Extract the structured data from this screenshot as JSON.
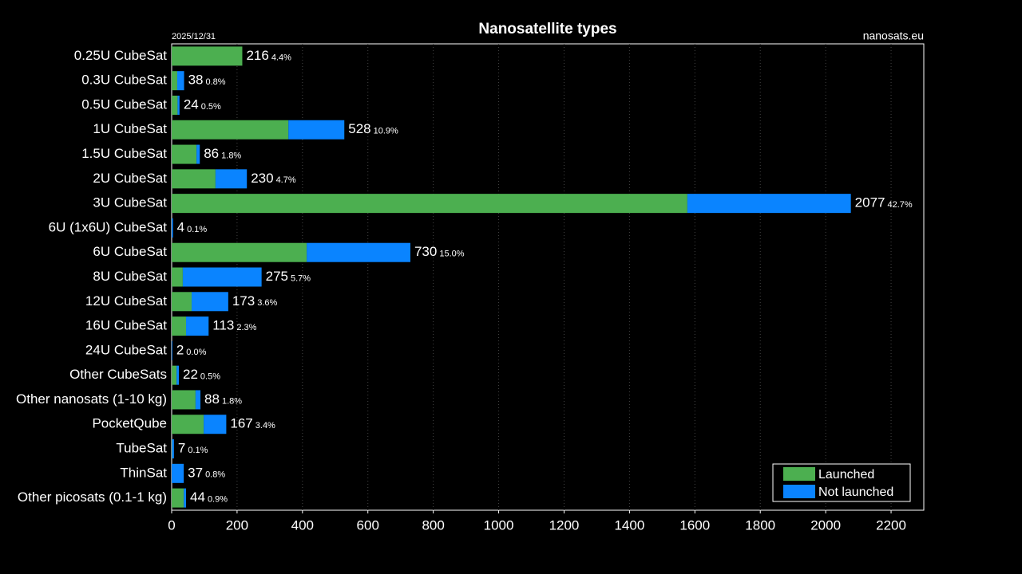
{
  "chart_data": {
    "type": "stacked-barh",
    "title": "Nanosatellite types",
    "date": "2025/12/31",
    "source": "nanosats.eu",
    "categories": [
      "0.25U CubeSat",
      "0.3U CubeSat",
      "0.5U CubeSat",
      "1U CubeSat",
      "1.5U CubeSat",
      "2U CubeSat",
      "3U CubeSat",
      "6U (1x6U) CubeSat",
      "6U CubeSat",
      "8U CubeSat",
      "12U CubeSat",
      "16U CubeSat",
      "24U CubeSat",
      "Other CubeSats",
      "Other nanosats (1-10 kg)",
      "PocketQube",
      "TubeSat",
      "ThinSat",
      "Other picosats (0.1-1 kg)"
    ],
    "series": [
      {
        "name": "Launched",
        "color": "#4caf50",
        "values": [
          216,
          17,
          18,
          357,
          76,
          134,
          1577,
          0,
          413,
          34,
          61,
          44,
          0,
          15,
          73,
          98,
          1,
          0,
          37
        ]
      },
      {
        "name": "Not launched",
        "color": "#0a84ff",
        "values": [
          0,
          21,
          6,
          171,
          10,
          96,
          500,
          4,
          317,
          241,
          112,
          69,
          2,
          7,
          15,
          69,
          6,
          37,
          7
        ]
      }
    ],
    "totals": [
      216,
      38,
      24,
      528,
      86,
      230,
      2077,
      4,
      730,
      275,
      173,
      113,
      2,
      22,
      88,
      167,
      7,
      37,
      44
    ],
    "shares": [
      4.4,
      0.8,
      0.5,
      10.9,
      1.8,
      4.7,
      42.7,
      0.1,
      15.0,
      5.7,
      3.6,
      2.3,
      0.0,
      0.5,
      1.8,
      3.4,
      0.1,
      0.8,
      0.9
    ],
    "share_labels": [
      "4.4%",
      "0.8%",
      "0.5%",
      "10.9%",
      "1.8%",
      "4.7%",
      "42.7%",
      "0.1%",
      "15.0%",
      "5.7%",
      "3.6%",
      "2.3%",
      "0.0%",
      "0.5%",
      "1.8%",
      "3.4%",
      "0.1%",
      "0.8%",
      "0.9%"
    ],
    "xlim": [
      0,
      2300
    ],
    "xticks": [
      0,
      200,
      400,
      600,
      800,
      1000,
      1200,
      1400,
      1600,
      1800,
      2000,
      2200
    ],
    "grid": true,
    "legend": "lower right"
  }
}
